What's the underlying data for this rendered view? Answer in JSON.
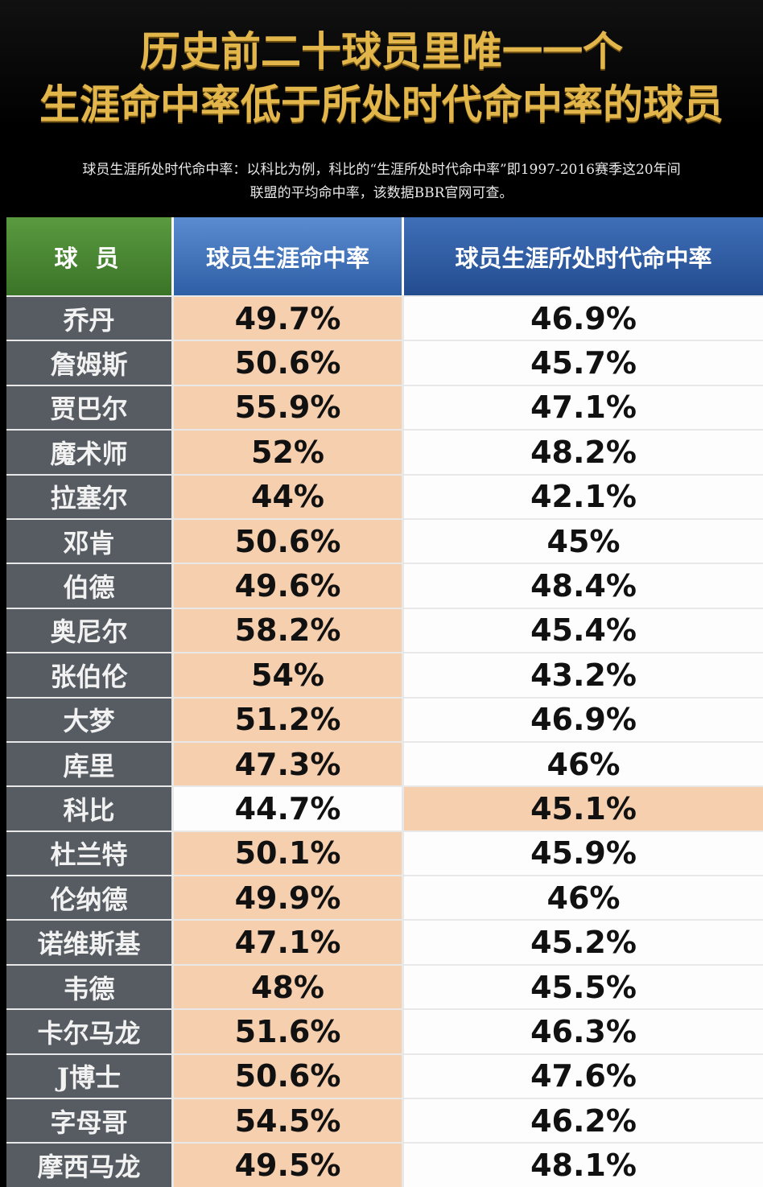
{
  "header": {
    "title_line1": "历史前二十球员里唯一一个",
    "title_line2": "生涯命中率低于所处时代命中率的球员",
    "note_line1": "球员生涯所处时代命中率：以科比为例，科比的“生涯所处时代命中率”即1997-2016赛季这20年间",
    "note_line2": "联盟的平均命中率，该数据BBR官网可查。"
  },
  "table": {
    "columns": [
      "球 员",
      "球员生涯命中率",
      "球员生涯所处时代命中率"
    ],
    "rows": [
      {
        "name": "乔丹",
        "career": "49.7%",
        "era": "46.9%"
      },
      {
        "name": "詹姆斯",
        "career": "50.6%",
        "era": "45.7%"
      },
      {
        "name": "贾巴尔",
        "career": "55.9%",
        "era": "47.1%"
      },
      {
        "name": "魔术师",
        "career": "52%",
        "era": "48.2%"
      },
      {
        "name": "拉塞尔",
        "career": "44%",
        "era": "42.1%"
      },
      {
        "name": "邓肯",
        "career": "50.6%",
        "era": "45%"
      },
      {
        "name": "伯德",
        "career": "49.6%",
        "era": "48.4%"
      },
      {
        "name": "奥尼尔",
        "career": "58.2%",
        "era": "45.4%"
      },
      {
        "name": "张伯伦",
        "career": "54%",
        "era": "43.2%"
      },
      {
        "name": "大梦",
        "career": "51.2%",
        "era": "46.9%"
      },
      {
        "name": "库里",
        "career": "47.3%",
        "era": "46%"
      },
      {
        "name": "科比",
        "career": "44.7%",
        "era": "45.1%"
      },
      {
        "name": "杜兰特",
        "career": "50.1%",
        "era": "45.9%"
      },
      {
        "name": "伦纳德",
        "career": "49.9%",
        "era": "46%"
      },
      {
        "name": "诺维斯基",
        "career": "47.1%",
        "era": "45.2%"
      },
      {
        "name": "韦德",
        "career": "48%",
        "era": "45.5%"
      },
      {
        "name": "卡尔马龙",
        "career": "51.6%",
        "era": "46.3%"
      },
      {
        "name": "J博士",
        "career": "50.6%",
        "era": "47.6%"
      },
      {
        "name": "字母哥",
        "career": "54.5%",
        "era": "46.2%"
      },
      {
        "name": "摩西马龙",
        "career": "49.5%",
        "era": "48.1%"
      }
    ]
  },
  "colors": {
    "title": "#e2b64a",
    "highlight": "#f6cfae",
    "name_cell": "#565c62",
    "header_player": "#3b7428",
    "header_blue": "#2e5fa6"
  }
}
